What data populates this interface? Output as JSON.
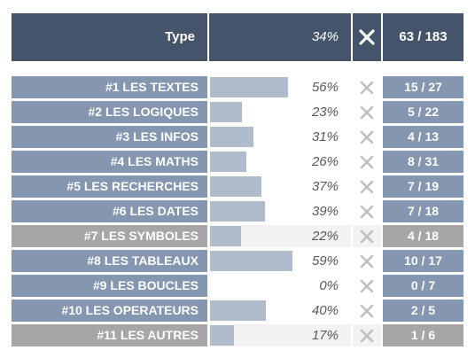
{
  "header": {
    "type_label": "Type",
    "percent": "34%",
    "count": "63 / 183"
  },
  "rows": [
    {
      "label": "#1 LES TEXTES",
      "percent": "56%",
      "fill": 0.56,
      "count": "15 / 27",
      "state": "active"
    },
    {
      "label": "#2 LES LOGIQUES",
      "percent": "23%",
      "fill": 0.23,
      "count": "5 / 22",
      "state": "active"
    },
    {
      "label": "#3 LES INFOS",
      "percent": "31%",
      "fill": 0.31,
      "count": "4 / 13",
      "state": "active"
    },
    {
      "label": "#4 LES MATHS",
      "percent": "26%",
      "fill": 0.26,
      "count": "8 / 31",
      "state": "active"
    },
    {
      "label": "#5 LES RECHERCHES",
      "percent": "37%",
      "fill": 0.37,
      "count": "7 / 19",
      "state": "active"
    },
    {
      "label": "#6 LES DATES",
      "percent": "39%",
      "fill": 0.39,
      "count": "7 / 18",
      "state": "active"
    },
    {
      "label": "#7 LES SYMBOLES",
      "percent": "22%",
      "fill": 0.22,
      "count": "4 / 18",
      "state": "inactive"
    },
    {
      "label": "#8 LES TABLEAUX",
      "percent": "59%",
      "fill": 0.59,
      "count": "10 / 17",
      "state": "active"
    },
    {
      "label": "#9 LES BOUCLES",
      "percent": "0%",
      "fill": 0.0,
      "count": "0 / 7",
      "state": "active"
    },
    {
      "label": "#10 LES OPERATEURS",
      "percent": "40%",
      "fill": 0.4,
      "count": "2 / 5",
      "state": "active"
    },
    {
      "label": "#11 LES AUTRES",
      "percent": "17%",
      "fill": 0.17,
      "count": "1 / 6",
      "state": "inactive"
    }
  ],
  "icons": {
    "row_action": "close-x-icon",
    "header_action": "close-x-icon"
  },
  "colors": {
    "header_bg": "#44546a",
    "row_active": "#8496b0",
    "row_inactive": "#a6a6a6",
    "bar_fill": "#b0bccc",
    "x_icon": "#bfbfbf"
  }
}
